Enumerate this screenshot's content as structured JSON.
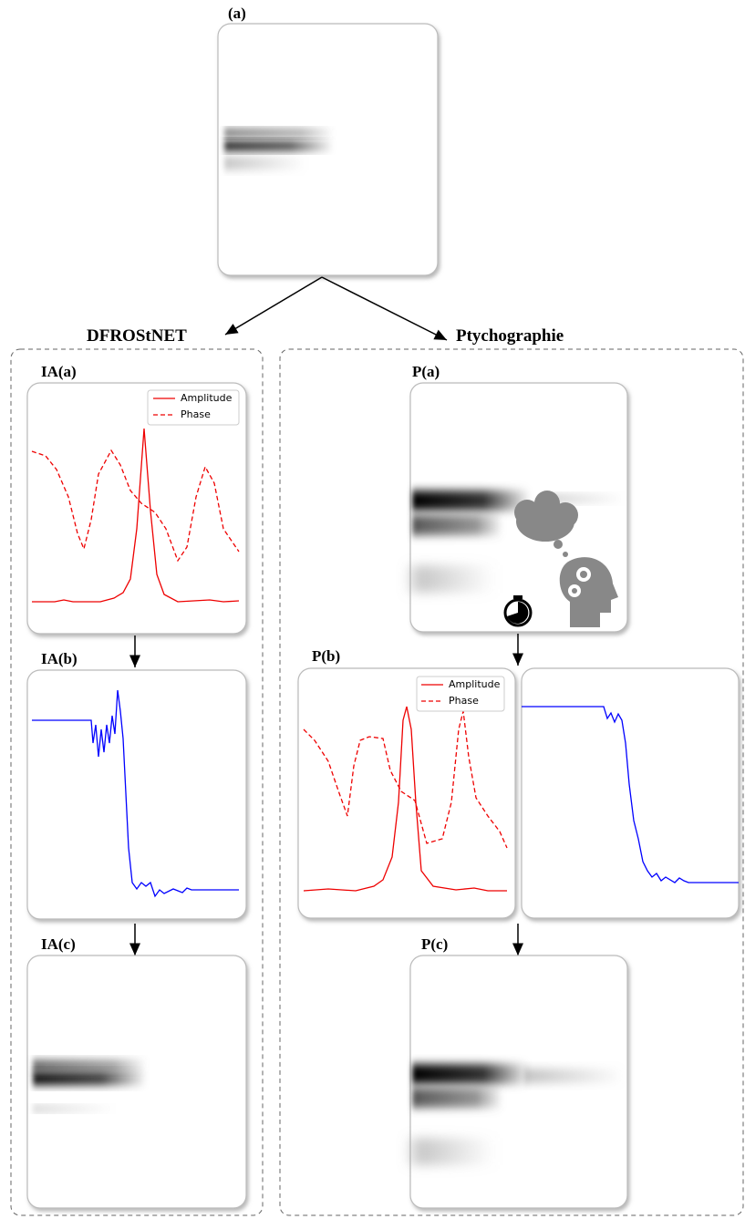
{
  "header": {
    "label": "(a)"
  },
  "branches": [
    {
      "title": "DFROStNET",
      "panels": [
        {
          "label": "IA(a)",
          "legend": [
            "Amplitude",
            "Phase"
          ]
        },
        {
          "label": "IA(b)"
        },
        {
          "label": "IA(c)"
        }
      ]
    },
    {
      "title": "Ptychographie",
      "panels": [
        {
          "label": "P(a)"
        },
        {
          "label": "P(b)",
          "legend": [
            "Amplitude",
            "Phase"
          ]
        },
        {
          "label": "P(c)"
        }
      ]
    }
  ]
}
